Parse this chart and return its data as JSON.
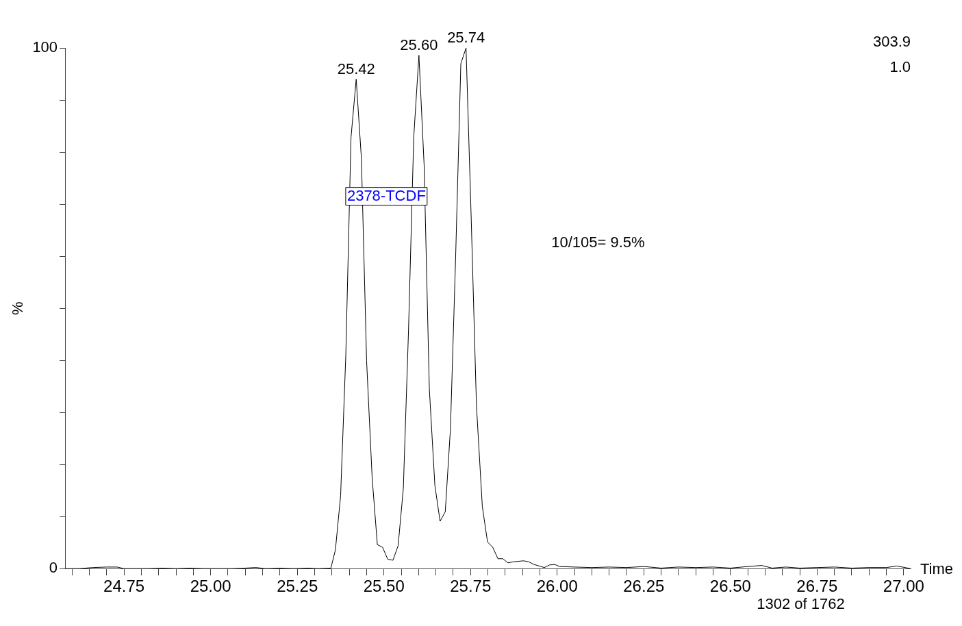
{
  "chart_data": {
    "type": "line",
    "xlabel": "Time",
    "ylabel": "%",
    "x": [
      24.58,
      24.62,
      24.66,
      24.7,
      24.73,
      24.75,
      24.78,
      24.82,
      24.86,
      24.9,
      24.94,
      24.98,
      25.02,
      25.06,
      25.1,
      25.13,
      25.16,
      25.2,
      25.24,
      25.28,
      25.31,
      25.347,
      25.36,
      25.375,
      25.39,
      25.405,
      25.42,
      25.435,
      25.45,
      25.466,
      25.481,
      25.496,
      25.511,
      25.526,
      25.541,
      25.556,
      25.571,
      25.586,
      25.601,
      25.616,
      25.631,
      25.647,
      25.662,
      25.677,
      25.692,
      25.707,
      25.722,
      25.737,
      25.752,
      25.767,
      25.784,
      25.799,
      25.814,
      25.829,
      25.843,
      25.858,
      25.873,
      25.888,
      25.903,
      25.918,
      25.933,
      25.948,
      25.963,
      25.978,
      25.993,
      26.007,
      26.05,
      26.1,
      26.15,
      26.2,
      26.25,
      26.3,
      26.35,
      26.4,
      26.45,
      26.5,
      26.55,
      26.59,
      26.62,
      26.66,
      26.7,
      26.75,
      26.8,
      26.85,
      26.9,
      26.95,
      26.98,
      27.02
    ],
    "values": [
      0,
      0,
      0.2,
      0.3,
      0.3,
      0,
      0,
      0,
      0.1,
      0,
      0.1,
      0,
      0,
      0,
      0.1,
      0.2,
      0,
      0.1,
      0,
      0.1,
      0,
      0.1,
      3.6,
      14,
      41,
      82.8,
      94,
      78.8,
      39.9,
      17.5,
      4.6,
      4.1,
      1.8,
      1.6,
      4.4,
      15.4,
      45.8,
      82.8,
      98.6,
      77.5,
      34.6,
      16,
      9.1,
      10.9,
      26.9,
      60,
      97,
      100,
      67,
      31.3,
      11.9,
      5.1,
      4.1,
      1.9,
      1.9,
      1.1,
      1.3,
      1.4,
      1.5,
      1.3,
      0.8,
      0.5,
      0.2,
      0.7,
      0.8,
      0.4,
      0.3,
      0.2,
      0.3,
      0.2,
      0.4,
      0.1,
      0.3,
      0.2,
      0.3,
      0.1,
      0.4,
      0.6,
      0.1,
      0.3,
      0.1,
      0.2,
      0.3,
      0.1,
      0.2,
      0.2,
      0.5,
      0
    ],
    "color": "#000000",
    "xlim": [
      24.58,
      27.02
    ],
    "ylim": [
      0,
      100
    ],
    "xticks": [
      {
        "value": 24.6,
        "label": null
      },
      {
        "value": 24.65,
        "label": null
      },
      {
        "value": 24.7,
        "label": null
      },
      {
        "value": 24.75,
        "label": "24.75"
      },
      {
        "value": 24.8,
        "label": null
      },
      {
        "value": 24.85,
        "label": null
      },
      {
        "value": 24.9,
        "label": null
      },
      {
        "value": 24.95,
        "label": null
      },
      {
        "value": 25,
        "label": "25.00"
      },
      {
        "value": 25.05,
        "label": null
      },
      {
        "value": 25.1,
        "label": null
      },
      {
        "value": 25.15,
        "label": null
      },
      {
        "value": 25.2,
        "label": null
      },
      {
        "value": 25.25,
        "label": "25.25"
      },
      {
        "value": 25.3,
        "label": null
      },
      {
        "value": 25.35,
        "label": null
      },
      {
        "value": 25.4,
        "label": null
      },
      {
        "value": 25.45,
        "label": null
      },
      {
        "value": 25.5,
        "label": "25.50"
      },
      {
        "value": 25.55,
        "label": null
      },
      {
        "value": 25.6,
        "label": null
      },
      {
        "value": 25.65,
        "label": null
      },
      {
        "value": 25.7,
        "label": null
      },
      {
        "value": 25.75,
        "label": "25.75"
      },
      {
        "value": 25.8,
        "label": null
      },
      {
        "value": 25.85,
        "label": null
      },
      {
        "value": 25.9,
        "label": null
      },
      {
        "value": 25.95,
        "label": null
      },
      {
        "value": 26,
        "label": "26.00"
      },
      {
        "value": 26.05,
        "label": null
      },
      {
        "value": 26.1,
        "label": null
      },
      {
        "value": 26.15,
        "label": null
      },
      {
        "value": 26.2,
        "label": null
      },
      {
        "value": 26.25,
        "label": "26.25"
      },
      {
        "value": 26.3,
        "label": null
      },
      {
        "value": 26.35,
        "label": null
      },
      {
        "value": 26.4,
        "label": null
      },
      {
        "value": 26.45,
        "label": null
      },
      {
        "value": 26.5,
        "label": "26.50"
      },
      {
        "value": 26.55,
        "label": null
      },
      {
        "value": 26.6,
        "label": null
      },
      {
        "value": 26.65,
        "label": null
      },
      {
        "value": 26.7,
        "label": null
      },
      {
        "value": 26.75,
        "label": "26.75"
      },
      {
        "value": 26.8,
        "label": null
      },
      {
        "value": 26.85,
        "label": null
      },
      {
        "value": 26.9,
        "label": null
      },
      {
        "value": 26.95,
        "label": null
      },
      {
        "value": 27,
        "label": "27.00"
      }
    ],
    "yticks": [
      0,
      {
        "value": 10,
        "label": null
      },
      {
        "value": 20,
        "label": null
      },
      {
        "value": 30,
        "label": null
      },
      {
        "value": 40,
        "label": null
      },
      {
        "value": 50,
        "label": null
      },
      {
        "value": 60,
        "label": null
      },
      {
        "value": 70,
        "label": null
      },
      {
        "value": 80,
        "label": null
      },
      {
        "value": 90,
        "label": null
      },
      100
    ],
    "grid": false,
    "legend": false,
    "marker": "none",
    "line_style": "solid",
    "annotations": [
      {
        "text": "25.42",
        "x": 25.42,
        "y": 94
      },
      {
        "text": "25.60",
        "x": 25.601,
        "y": 98.6
      },
      {
        "text": "25.74",
        "x": 25.737,
        "y": 100
      },
      "2378-TCDF",
      "10/105= 9.5%",
      "303.9",
      "1.0",
      "1302 of 1762"
    ]
  }
}
